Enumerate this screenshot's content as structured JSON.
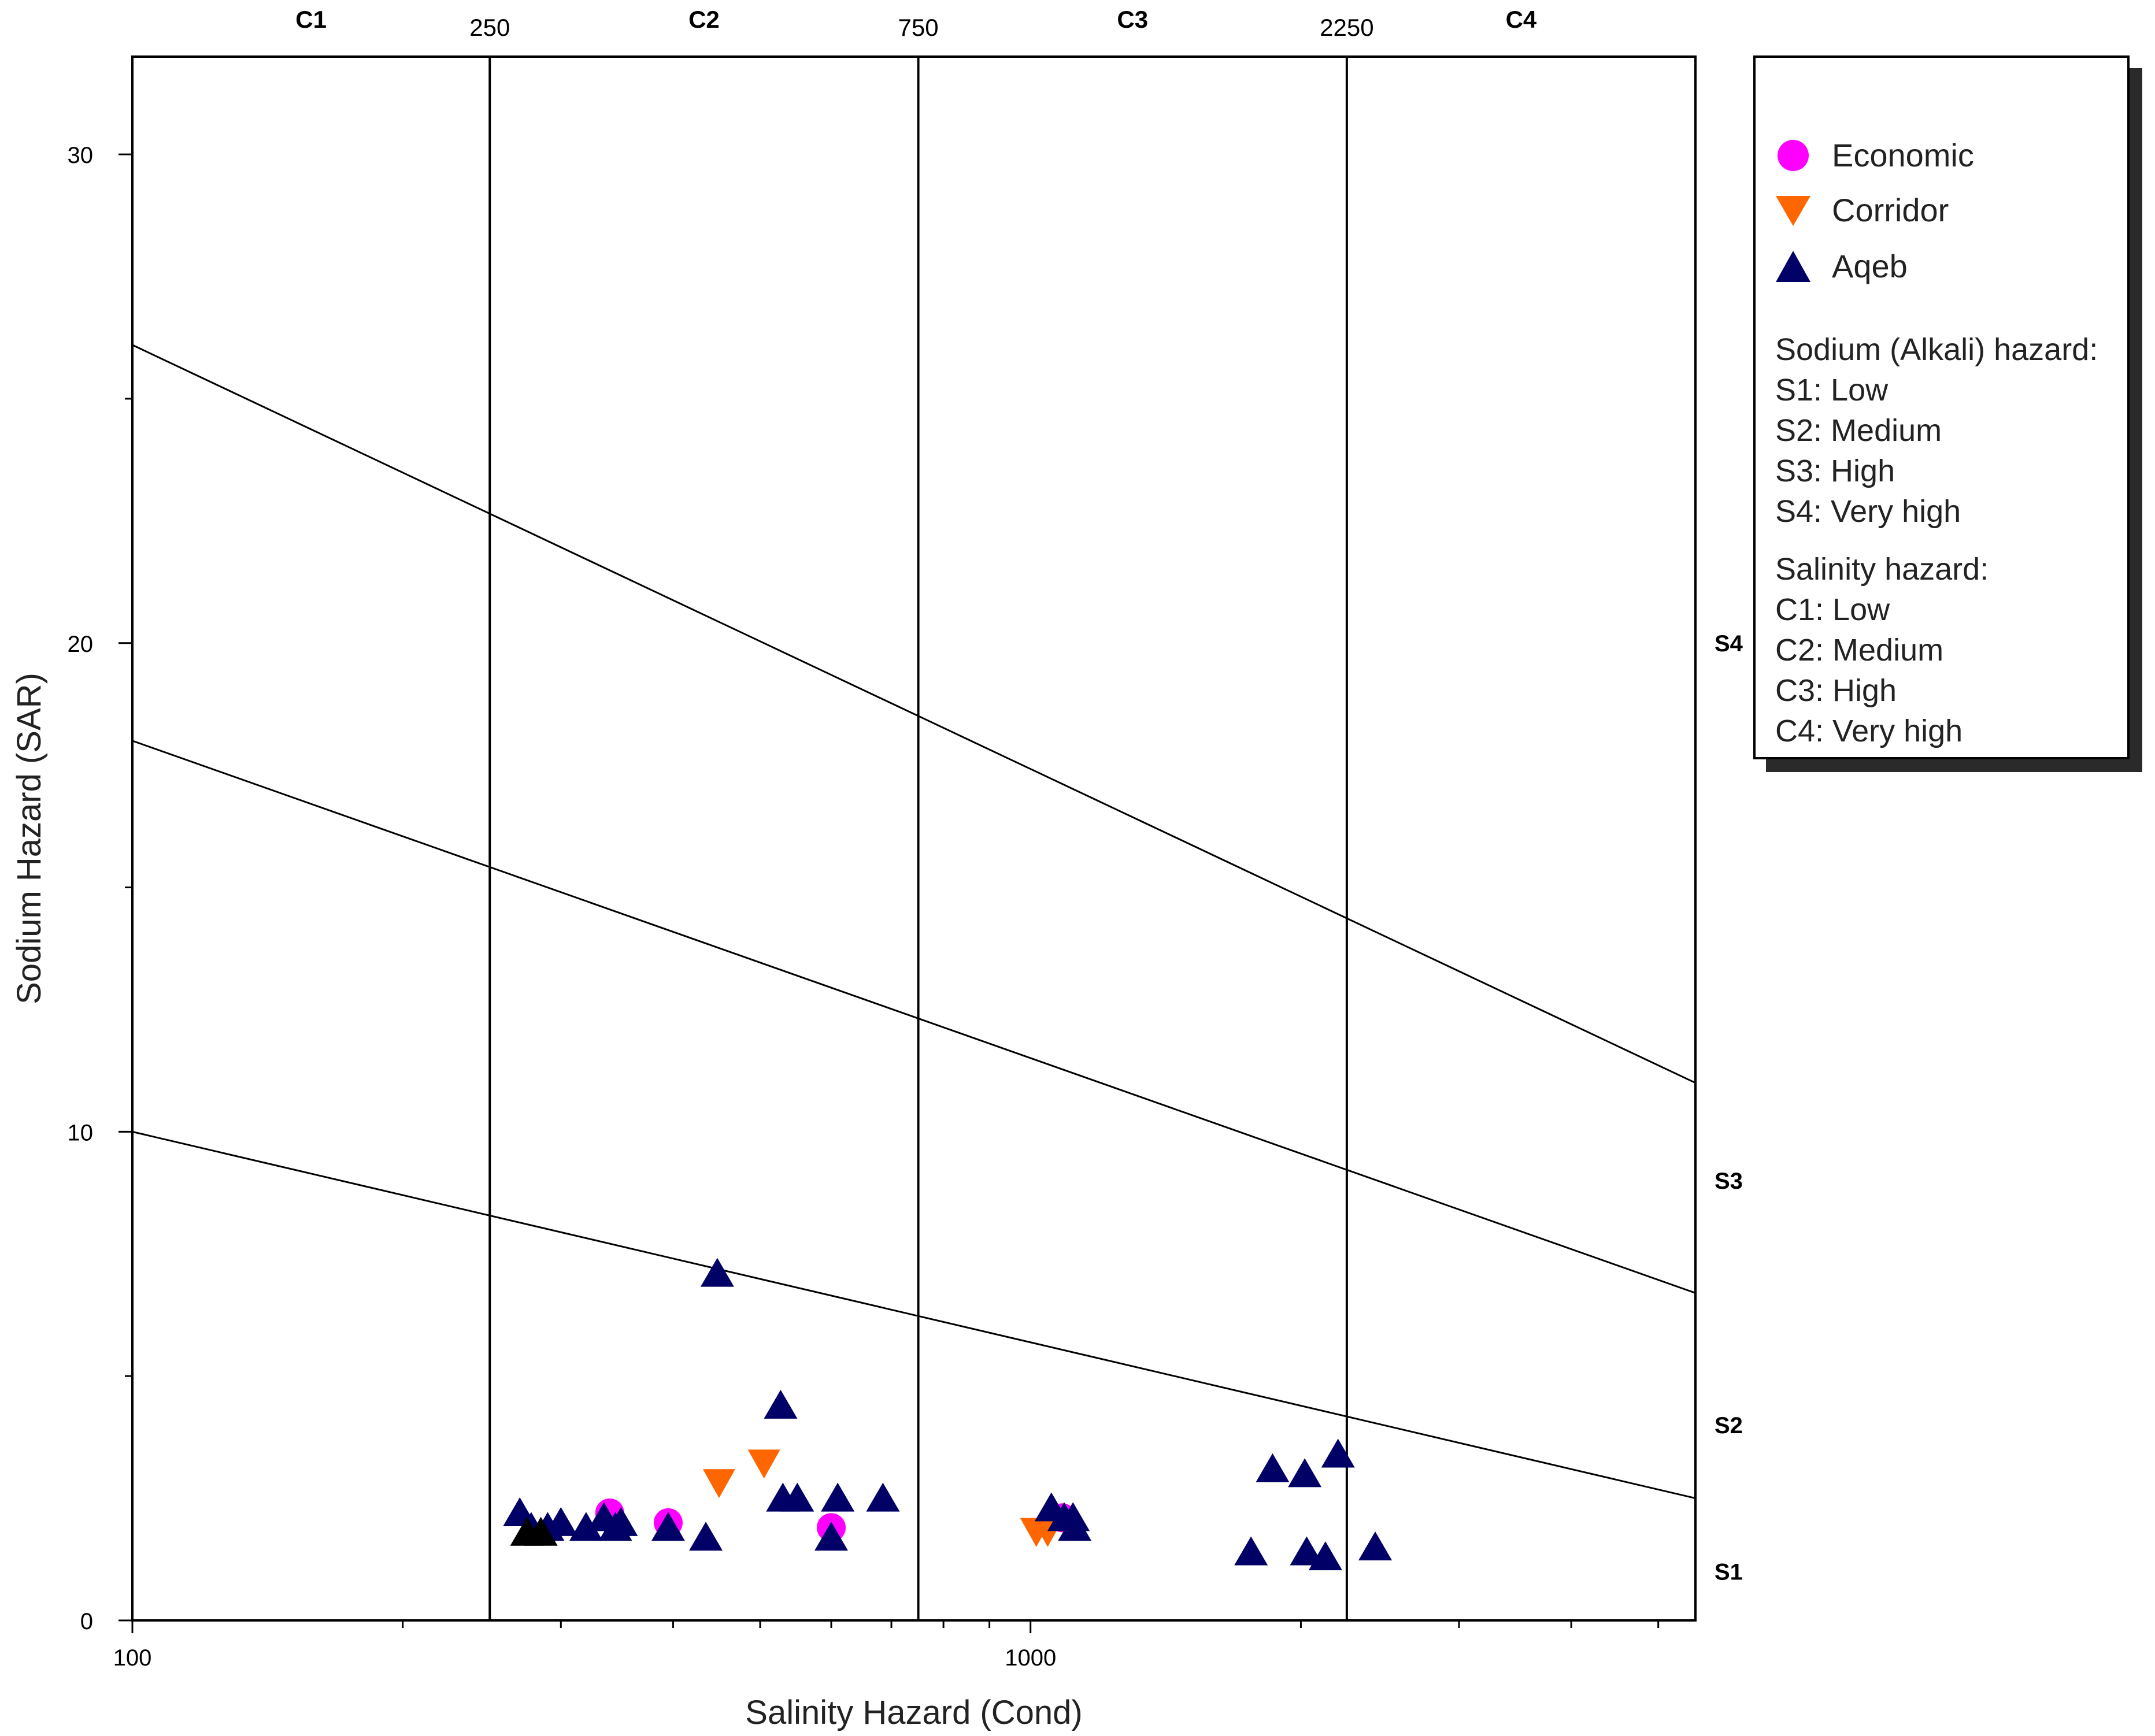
{
  "chart_data": {
    "type": "scatter",
    "title": "",
    "xlabel": "Salinity Hazard (Cond)",
    "ylabel": "Sodium Hazard (SAR)",
    "x_scale": "log",
    "xlim": [
      100,
      5500
    ],
    "ylim": [
      0,
      32
    ],
    "x_ticks": [
      100,
      1000
    ],
    "y_ticks": [
      0,
      10,
      20,
      30
    ],
    "grid": false,
    "legend_position": "top-right outside",
    "salinity_boundaries": [
      250,
      750,
      2250
    ],
    "salinity_classes": [
      "C1",
      "C2",
      "C3",
      "C4"
    ],
    "sodium_classes": [
      "S4",
      "S3",
      "S2",
      "S1"
    ],
    "sodium_hazard_lines": [
      {
        "name": "S3/S4",
        "points": [
          [
            100,
            26.1
          ],
          [
            5500,
            11.0
          ]
        ]
      },
      {
        "name": "S2/S3",
        "points": [
          [
            100,
            18.0
          ],
          [
            5500,
            6.7
          ]
        ]
      },
      {
        "name": "S1/S2",
        "points": [
          [
            100,
            10.0
          ],
          [
            5500,
            2.5
          ]
        ]
      }
    ],
    "series": [
      {
        "name": "Economic",
        "marker": "circle",
        "color": "#ff00ff",
        "points": [
          [
            340,
            2.2
          ],
          [
            395,
            2.0
          ],
          [
            600,
            1.9
          ],
          [
            1085,
            2.1
          ]
        ]
      },
      {
        "name": "Corridor",
        "marker": "triangle-down",
        "color": "#ff6600",
        "points": [
          [
            450,
            2.8
          ],
          [
            505,
            3.2
          ],
          [
            1015,
            1.8
          ],
          [
            1045,
            1.8
          ]
        ]
      },
      {
        "name": "Aqeb",
        "marker": "triangle-up",
        "color": "#000066",
        "points": [
          [
            270,
            2.2
          ],
          [
            278,
            1.9
          ],
          [
            290,
            1.9
          ],
          [
            300,
            2.0
          ],
          [
            320,
            1.9
          ],
          [
            335,
            2.1
          ],
          [
            345,
            1.9
          ],
          [
            350,
            2.0
          ],
          [
            395,
            1.9
          ],
          [
            435,
            1.7
          ],
          [
            448,
            7.1
          ],
          [
            527,
            4.4
          ],
          [
            530,
            2.5
          ],
          [
            550,
            2.5
          ],
          [
            600,
            1.7
          ],
          [
            610,
            2.5
          ],
          [
            685,
            2.5
          ],
          [
            1055,
            2.3
          ],
          [
            1090,
            2.1
          ],
          [
            1115,
            2.1
          ],
          [
            1120,
            1.9
          ],
          [
            1760,
            1.4
          ],
          [
            1860,
            3.1
          ],
          [
            2020,
            3.0
          ],
          [
            2030,
            1.4
          ],
          [
            2130,
            1.3
          ],
          [
            2200,
            3.4
          ],
          [
            2420,
            1.5
          ]
        ]
      },
      {
        "name": "",
        "marker": "triangle-up",
        "color": "#000000",
        "points": [
          [
            275,
            1.8
          ],
          [
            285,
            1.8
          ]
        ]
      }
    ]
  },
  "labels": {
    "x_tick_labels": [
      "100",
      "1000"
    ],
    "y_tick_labels": [
      "0",
      "10",
      "20",
      "30"
    ],
    "boundary_labels": [
      "250",
      "750",
      "2250"
    ],
    "salinity_class_labels": [
      "C1",
      "C2",
      "C3",
      "C4"
    ],
    "sodium_class_labels": [
      "S4",
      "S3",
      "S2",
      "S1"
    ]
  },
  "legend": {
    "entries": [
      {
        "label": "Economic",
        "marker": "circle",
        "color": "#ff00ff"
      },
      {
        "label": "Corridor",
        "marker": "triangle-down",
        "color": "#ff6600"
      },
      {
        "label": "Aqeb",
        "marker": "triangle-up",
        "color": "#000066"
      }
    ],
    "sodium_heading": "Sodium (Alkali) hazard:",
    "sodium_items": [
      "S1: Low",
      "S2: Medium",
      "S3: High",
      "S4: Very high"
    ],
    "salinity_heading": "Salinity hazard:",
    "salinity_items": [
      "C1: Low",
      "C2: Medium",
      "C3: High",
      "C4: Very high"
    ]
  }
}
